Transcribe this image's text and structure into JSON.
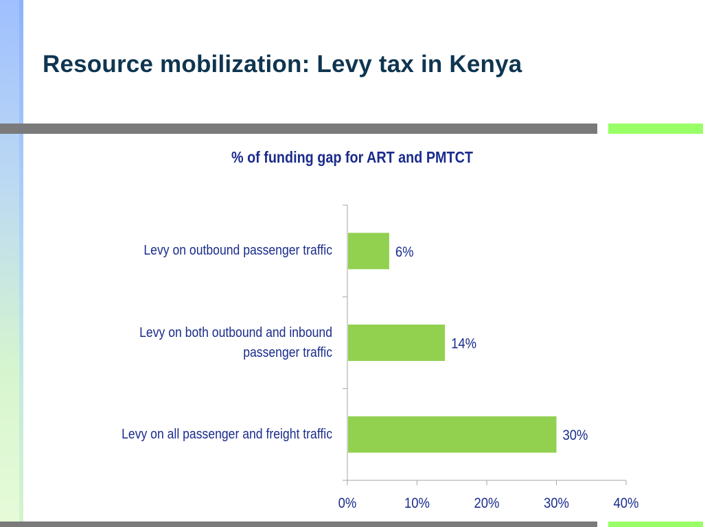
{
  "slide": {
    "title": "Resource mobilization: Levy tax in Kenya"
  },
  "colors": {
    "bar": "#92d050",
    "text": "#1a2b8c",
    "title": "#0f3550",
    "rule": "#7a7a7a",
    "accent": "#99ff66"
  },
  "chart_data": {
    "type": "bar",
    "orientation": "horizontal",
    "title": "% of funding gap for ART and PMTCT",
    "categories": [
      "Levy on outbound passenger traffic",
      "Levy on both outbound and inbound passenger traffic",
      "Levy on all passenger and freight traffic"
    ],
    "category_lines": [
      [
        "Levy on outbound passenger traffic"
      ],
      [
        "Levy on both outbound and inbound",
        "passenger traffic"
      ],
      [
        "Levy on all passenger and freight traffic"
      ]
    ],
    "values": [
      6,
      14,
      30
    ],
    "data_labels": [
      "6%",
      "14%",
      "30%"
    ],
    "xlim": [
      0,
      40
    ],
    "x_ticks": [
      0,
      10,
      20,
      30,
      40
    ],
    "x_tick_labels": [
      "0%",
      "10%",
      "20%",
      "30%",
      "40%"
    ],
    "xlabel": "",
    "ylabel": "",
    "grid": false,
    "legend": "none"
  }
}
